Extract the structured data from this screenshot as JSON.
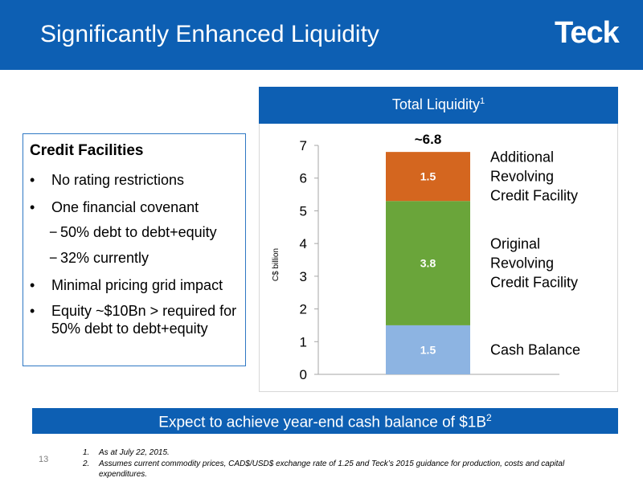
{
  "header": {
    "title": "Significantly Enhanced Liquidity",
    "logo_text": "Teck"
  },
  "facilities": {
    "title": "Credit Facilities",
    "bullet_symbol": "•",
    "dash_symbol": "−",
    "items": [
      "No rating restrictions",
      "One financial covenant",
      "Minimal pricing grid impact",
      "Equity ~$10Bn > required for 50% debt to debt+equity"
    ],
    "subitems": [
      "50% debt to  debt+equity",
      "32% currently"
    ]
  },
  "chart_banner": {
    "title": "Total Liquidity",
    "footnote_marker": "1"
  },
  "chart_data": {
    "type": "bar",
    "stacked": true,
    "categories": [
      ""
    ],
    "ylabel": "C$ billion",
    "ylim": [
      0,
      7
    ],
    "yticks": [
      "0",
      "1",
      "2",
      "3",
      "4",
      "5",
      "6",
      "7"
    ],
    "total_label": "~6.8",
    "grid": false,
    "legend_position": "right",
    "series": [
      {
        "name": "Cash Balance",
        "values": [
          1.5
        ],
        "label": "1.5",
        "color": "#8db4e2"
      },
      {
        "name": "Original Revolving Credit Facility",
        "values": [
          3.8
        ],
        "label": "3.8",
        "color": "#6aa53a"
      },
      {
        "name": "Additional Revolving Credit Facility",
        "values": [
          1.5
        ],
        "label": "1.5",
        "color": "#d4661f"
      }
    ],
    "series_labels": [
      [
        "Cash Balance"
      ],
      [
        "Original",
        "Revolving",
        "Credit Facility"
      ],
      [
        "Additional",
        "Revolving",
        "Credit Facility"
      ]
    ]
  },
  "bottom_banner": {
    "text": "Expect  to achieve year-end cash balance of $1B",
    "footnote_marker": "2"
  },
  "page_number": "13",
  "footnotes": [
    {
      "marker": "1.",
      "text": "As at July 22, 2015."
    },
    {
      "marker": "2.",
      "text": "Assumes current commodity prices, CAD$/USD$ exchange rate  of 1.25 and Teck’s 2015 guidance for production, costs and capital expenditures."
    }
  ]
}
